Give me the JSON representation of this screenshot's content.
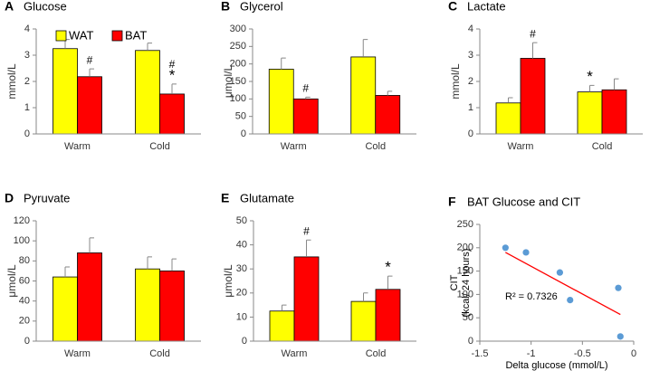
{
  "chart_data": [
    {
      "type": "bar",
      "letter": "A",
      "title": "Glucose",
      "ylabel": "mmol/L",
      "categories": [
        "Warm",
        "Cold"
      ],
      "ylim": [
        0,
        4
      ],
      "yticks": [
        0,
        1,
        2,
        3,
        4
      ],
      "legend": "upper center",
      "series": [
        {
          "name": "WAT",
          "color": "#ffff00",
          "values": [
            3.25,
            3.18
          ],
          "errors": [
            0.35,
            0.28
          ],
          "annotations": [
            [],
            []
          ]
        },
        {
          "name": "BAT",
          "color": "#ff0000",
          "values": [
            2.18,
            1.52
          ],
          "errors": [
            0.3,
            0.38
          ],
          "annotations": [
            [
              "#"
            ],
            [
              "#",
              "*"
            ]
          ]
        }
      ]
    },
    {
      "type": "bar",
      "letter": "B",
      "title": "Glycerol",
      "ylabel": "μmol/L",
      "categories": [
        "Warm",
        "Cold"
      ],
      "ylim": [
        0,
        300
      ],
      "yticks": [
        0,
        50,
        100,
        150,
        200,
        250,
        300
      ],
      "series": [
        {
          "name": "WAT",
          "color": "#ffff00",
          "values": [
            185,
            220
          ],
          "errors": [
            32,
            50
          ],
          "annotations": [
            [],
            []
          ]
        },
        {
          "name": "BAT",
          "color": "#ff0000",
          "values": [
            100,
            110
          ],
          "errors": [
            5,
            12
          ],
          "annotations": [
            [
              "#"
            ],
            []
          ]
        }
      ]
    },
    {
      "type": "bar",
      "letter": "C",
      "title": "Lactate",
      "ylabel": "mmol/L",
      "categories": [
        "Warm",
        "Cold"
      ],
      "ylim": [
        0,
        4
      ],
      "yticks": [
        0,
        1,
        2,
        3,
        4
      ],
      "series": [
        {
          "name": "WAT",
          "color": "#ffff00",
          "values": [
            1.18,
            1.6
          ],
          "errors": [
            0.2,
            0.25
          ],
          "annotations": [
            [],
            [
              "*"
            ]
          ]
        },
        {
          "name": "BAT",
          "color": "#ff0000",
          "values": [
            2.88,
            1.68
          ],
          "errors": [
            0.6,
            0.42
          ],
          "annotations": [
            [
              "#"
            ],
            []
          ]
        }
      ]
    },
    {
      "type": "bar",
      "letter": "D",
      "title": "Pyruvate",
      "ylabel": "μmol/L",
      "categories": [
        "Warm",
        "Cold"
      ],
      "ylim": [
        0,
        120
      ],
      "yticks": [
        0,
        20,
        40,
        60,
        80,
        100,
        120
      ],
      "series": [
        {
          "name": "WAT",
          "color": "#ffff00",
          "values": [
            64,
            72
          ],
          "errors": [
            10,
            12
          ],
          "annotations": [
            [],
            []
          ]
        },
        {
          "name": "BAT",
          "color": "#ff0000",
          "values": [
            88,
            70
          ],
          "errors": [
            15,
            12
          ],
          "annotations": [
            [],
            []
          ]
        }
      ]
    },
    {
      "type": "bar",
      "letter": "E",
      "title": "Glutamate",
      "ylabel": "μmol/L",
      "categories": [
        "Warm",
        "Cold"
      ],
      "ylim": [
        0,
        50
      ],
      "yticks": [
        0,
        10,
        20,
        30,
        40,
        50
      ],
      "series": [
        {
          "name": "WAT",
          "color": "#ffff00",
          "values": [
            12.5,
            16.5
          ],
          "errors": [
            2.5,
            3.5
          ],
          "annotations": [
            [],
            []
          ]
        },
        {
          "name": "BAT",
          "color": "#ff0000",
          "values": [
            35,
            21.5
          ],
          "errors": [
            7,
            5.5
          ],
          "annotations": [
            [
              "#"
            ],
            [
              "*"
            ]
          ]
        }
      ]
    },
    {
      "type": "scatter",
      "letter": "F",
      "title": "BAT Glucose and CIT",
      "xlabel": "Delta glucose (mmol/L)",
      "ylabel": [
        "CIT",
        "(kcal/ 24 hours)"
      ],
      "x": [
        -1.25,
        -1.05,
        -0.72,
        -0.62,
        -0.15,
        -0.13
      ],
      "values": [
        200,
        190,
        147,
        88,
        114,
        10
      ],
      "color": "#5b9bd5",
      "xlim": [
        -1.5,
        0
      ],
      "xticks": [
        -1.5,
        -1,
        -0.5,
        0
      ],
      "ylim": [
        0,
        250
      ],
      "yticks": [
        0,
        50,
        100,
        150,
        200,
        250
      ],
      "trendline": {
        "x": [
          -1.25,
          -0.13
        ],
        "values": [
          190,
          57
        ],
        "color": "#ff0000"
      },
      "annotation": "R² = 0.7326"
    }
  ]
}
